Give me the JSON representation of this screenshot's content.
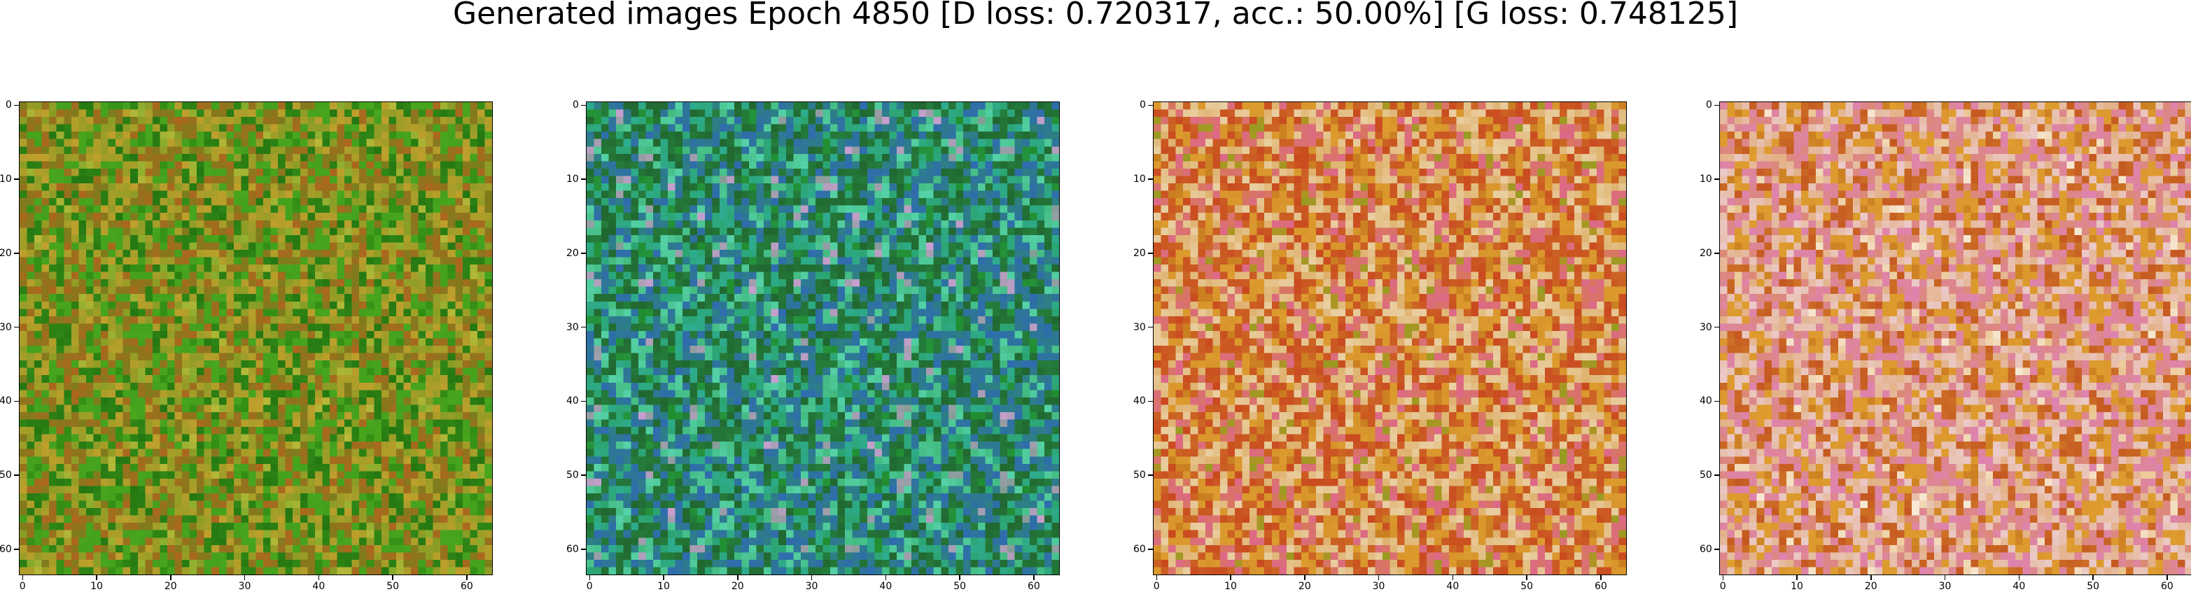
{
  "title": "Generated images Epoch 4850 [D loss: 0.720317, acc.: 50.00%] [G loss: 0.748125]",
  "axes": {
    "xticks": [
      "0",
      "10",
      "20",
      "30",
      "40",
      "50",
      "60"
    ],
    "yticks": [
      "0",
      "10",
      "20",
      "30",
      "40",
      "50",
      "60"
    ],
    "tick_values": [
      0,
      10,
      20,
      30,
      40,
      50,
      60
    ],
    "image_size": 64
  },
  "panels": [
    {
      "name": "generated-image-1",
      "palette": [
        "#2e8a12",
        "#4aa81e",
        "#c85a1e",
        "#e0a030",
        "#1e6e0e",
        "#d8c040"
      ],
      "dominant": "#3f9a1c"
    },
    {
      "name": "generated-image-2",
      "palette": [
        "#1e8a2a",
        "#2fb0a0",
        "#1e5a2a",
        "#3060c8",
        "#60e0c0",
        "#f0a0f0"
      ],
      "dominant": "#2a9a4a"
    },
    {
      "name": "generated-image-3",
      "palette": [
        "#c87a1e",
        "#e0a030",
        "#c83a1e",
        "#f0e0c0",
        "#e060a0",
        "#8aa020"
      ],
      "dominant": "#d08a28"
    },
    {
      "name": "generated-image-4",
      "palette": [
        "#c87a1e",
        "#e0a030",
        "#f0d8f0",
        "#e080d0",
        "#c04a1e",
        "#ffffff"
      ],
      "dominant": "#d8902c"
    }
  ]
}
